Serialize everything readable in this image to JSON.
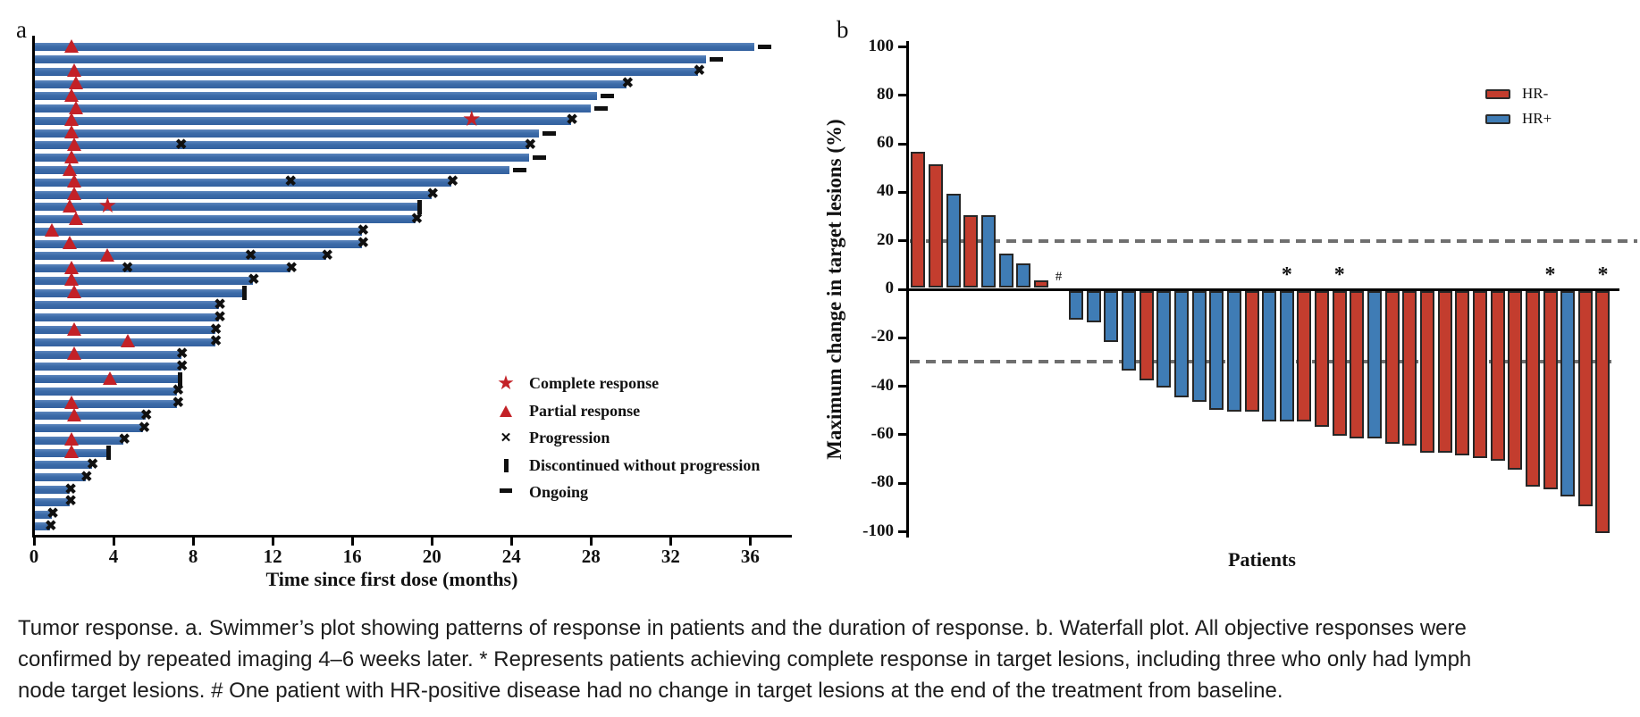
{
  "figure": {
    "panel_a_label": "a",
    "panel_b_label": "b"
  },
  "caption": {
    "lines": [
      "Tumor response. a. Swimmer’s plot showing patterns of response in patients and the duration of response. b. Waterfall plot. All objective responses were",
      "confirmed by repeated imaging 4–6 weeks later. * Represents patients achieving complete response in target lesions, including three who only had lymph",
      "node target lesions. # One patient with HR-positive disease had no change in target lesions at the end of the treatment from baseline."
    ]
  },
  "chart_data": [
    {
      "id": "swimmer",
      "type": "bar",
      "orientation": "horizontal",
      "xlabel": "Time since first dose (months)",
      "xticks": [
        0,
        4,
        8,
        12,
        16,
        20,
        24,
        28,
        32,
        36
      ],
      "xlim": [
        0,
        38
      ],
      "bar_color": "#3c6ba8",
      "marker_red": "#c32127",
      "marker_black": "#101010",
      "legend": [
        {
          "symbol": "star",
          "label": "Complete response"
        },
        {
          "symbol": "triangle",
          "label": "Partial response"
        },
        {
          "symbol": "x",
          "label": "Progression"
        },
        {
          "symbol": "vbar",
          "label": "Discontinued without progression"
        },
        {
          "symbol": "dash",
          "label": "Ongoing"
        }
      ],
      "patients": [
        {
          "months": 36.2,
          "end": "ongoing",
          "events": [
            {
              "type": "partial_response",
              "month": 1.9
            }
          ]
        },
        {
          "months": 33.8,
          "end": "ongoing",
          "events": []
        },
        {
          "months": 33.4,
          "end": "progression",
          "events": [
            {
              "type": "partial_response",
              "month": 2.0
            }
          ]
        },
        {
          "months": 29.8,
          "end": "progression",
          "events": [
            {
              "type": "partial_response",
              "month": 2.1
            }
          ]
        },
        {
          "months": 28.3,
          "end": "ongoing",
          "events": [
            {
              "type": "partial_response",
              "month": 1.9
            }
          ]
        },
        {
          "months": 28.0,
          "end": "ongoing",
          "events": [
            {
              "type": "partial_response",
              "month": 2.1
            }
          ]
        },
        {
          "months": 27.0,
          "end": "progression",
          "events": [
            {
              "type": "partial_response",
              "month": 1.9
            },
            {
              "type": "complete_response",
              "month": 22.0
            }
          ]
        },
        {
          "months": 25.4,
          "end": "ongoing",
          "events": [
            {
              "type": "partial_response",
              "month": 1.9
            }
          ]
        },
        {
          "months": 24.9,
          "end": "progression",
          "events": [
            {
              "type": "partial_response",
              "month": 2.0
            },
            {
              "type": "progression",
              "month": 7.4
            }
          ]
        },
        {
          "months": 24.9,
          "end": "ongoing",
          "events": [
            {
              "type": "partial_response",
              "month": 1.9
            }
          ]
        },
        {
          "months": 23.9,
          "end": "ongoing",
          "events": [
            {
              "type": "partial_response",
              "month": 1.8
            }
          ]
        },
        {
          "months": 21.0,
          "end": "progression",
          "events": [
            {
              "type": "partial_response",
              "month": 2.0
            },
            {
              "type": "progression",
              "month": 12.9
            }
          ]
        },
        {
          "months": 20.0,
          "end": "progression",
          "events": [
            {
              "type": "partial_response",
              "month": 2.0
            }
          ]
        },
        {
          "months": 19.3,
          "end": "discontinued",
          "events": [
            {
              "type": "partial_response",
              "month": 1.8
            },
            {
              "type": "complete_response",
              "month": 3.7
            }
          ]
        },
        {
          "months": 19.2,
          "end": "progression",
          "events": [
            {
              "type": "partial_response",
              "month": 2.1
            }
          ]
        },
        {
          "months": 16.5,
          "end": "progression",
          "events": [
            {
              "type": "partial_response",
              "month": 0.9
            }
          ]
        },
        {
          "months": 16.5,
          "end": "progression",
          "events": [
            {
              "type": "partial_response",
              "month": 1.8
            }
          ]
        },
        {
          "months": 14.7,
          "end": "progression",
          "events": [
            {
              "type": "partial_response",
              "month": 3.7
            },
            {
              "type": "progression",
              "month": 10.9
            }
          ]
        },
        {
          "months": 12.9,
          "end": "progression",
          "events": [
            {
              "type": "partial_response",
              "month": 1.9
            },
            {
              "type": "progression",
              "month": 4.7
            }
          ]
        },
        {
          "months": 11.0,
          "end": "progression",
          "events": [
            {
              "type": "partial_response",
              "month": 1.9
            }
          ]
        },
        {
          "months": 10.5,
          "end": "discontinued",
          "events": [
            {
              "type": "partial_response",
              "month": 2.0
            }
          ]
        },
        {
          "months": 9.3,
          "end": "progression",
          "events": []
        },
        {
          "months": 9.3,
          "end": "progression",
          "events": []
        },
        {
          "months": 9.1,
          "end": "progression",
          "events": [
            {
              "type": "partial_response",
              "month": 2.0
            }
          ]
        },
        {
          "months": 9.1,
          "end": "progression",
          "events": [
            {
              "type": "partial_response",
              "month": 4.7
            }
          ]
        },
        {
          "months": 7.4,
          "end": "progression",
          "events": [
            {
              "type": "partial_response",
              "month": 2.0
            }
          ]
        },
        {
          "months": 7.4,
          "end": "progression",
          "events": []
        },
        {
          "months": 7.3,
          "end": "discontinued",
          "events": [
            {
              "type": "partial_response",
              "month": 3.8
            }
          ]
        },
        {
          "months": 7.2,
          "end": "progression",
          "events": []
        },
        {
          "months": 7.2,
          "end": "progression",
          "events": [
            {
              "type": "partial_response",
              "month": 1.9
            }
          ]
        },
        {
          "months": 5.6,
          "end": "progression",
          "events": [
            {
              "type": "partial_response",
              "month": 2.0
            }
          ]
        },
        {
          "months": 5.5,
          "end": "progression",
          "events": []
        },
        {
          "months": 4.5,
          "end": "progression",
          "events": [
            {
              "type": "partial_response",
              "month": 1.9
            }
          ]
        },
        {
          "months": 3.7,
          "end": "discontinued",
          "events": [
            {
              "type": "partial_response",
              "month": 1.9
            }
          ]
        },
        {
          "months": 2.9,
          "end": "progression",
          "events": []
        },
        {
          "months": 2.6,
          "end": "progression",
          "events": []
        },
        {
          "months": 1.8,
          "end": "progression",
          "events": []
        },
        {
          "months": 1.8,
          "end": "progression",
          "events": []
        },
        {
          "months": 0.9,
          "end": "progression",
          "events": []
        },
        {
          "months": 0.8,
          "end": "progression",
          "events": []
        }
      ]
    },
    {
      "id": "waterfall",
      "type": "bar",
      "ylabel": "Maximum change in target lesions (%)",
      "xlabel": "Patients",
      "yticks": [
        100,
        80,
        60,
        40,
        20,
        0,
        -20,
        -40,
        -60,
        -80,
        -100
      ],
      "ylim": [
        -100,
        100
      ],
      "reference_lines": [
        20,
        -30
      ],
      "legend": [
        {
          "label": "HR-",
          "color": "#c33d2e"
        },
        {
          "label": "HR+",
          "color": "#3f7cb5"
        }
      ],
      "values": [
        {
          "value": 56,
          "group": "HR-"
        },
        {
          "value": 51,
          "group": "HR-"
        },
        {
          "value": 39,
          "group": "HR+"
        },
        {
          "value": 30,
          "group": "HR-"
        },
        {
          "value": 30,
          "group": "HR+"
        },
        {
          "value": 14,
          "group": "HR+"
        },
        {
          "value": 10,
          "group": "HR+"
        },
        {
          "value": 3,
          "group": "HR-"
        },
        {
          "value": 0,
          "group": "HR+",
          "annotation": "#"
        },
        {
          "value": -12,
          "group": "HR+"
        },
        {
          "value": -13,
          "group": "HR+"
        },
        {
          "value": -21,
          "group": "HR+"
        },
        {
          "value": -33,
          "group": "HR+"
        },
        {
          "value": -37,
          "group": "HR-"
        },
        {
          "value": -40,
          "group": "HR+"
        },
        {
          "value": -44,
          "group": "HR+"
        },
        {
          "value": -46,
          "group": "HR+"
        },
        {
          "value": -49,
          "group": "HR+"
        },
        {
          "value": -50,
          "group": "HR+"
        },
        {
          "value": -50,
          "group": "HR-"
        },
        {
          "value": -54,
          "group": "HR+"
        },
        {
          "value": -54,
          "group": "HR+",
          "annotation": "*"
        },
        {
          "value": -54,
          "group": "HR-"
        },
        {
          "value": -56,
          "group": "HR-"
        },
        {
          "value": -60,
          "group": "HR-",
          "annotation": "*"
        },
        {
          "value": -61,
          "group": "HR-"
        },
        {
          "value": -61,
          "group": "HR+"
        },
        {
          "value": -63,
          "group": "HR-"
        },
        {
          "value": -64,
          "group": "HR-"
        },
        {
          "value": -67,
          "group": "HR-"
        },
        {
          "value": -67,
          "group": "HR-"
        },
        {
          "value": -68,
          "group": "HR-"
        },
        {
          "value": -69,
          "group": "HR-"
        },
        {
          "value": -70,
          "group": "HR-"
        },
        {
          "value": -74,
          "group": "HR-"
        },
        {
          "value": -81,
          "group": "HR-"
        },
        {
          "value": -82,
          "group": "HR-",
          "annotation": "*"
        },
        {
          "value": -85,
          "group": "HR+"
        },
        {
          "value": -89,
          "group": "HR-"
        },
        {
          "value": -100,
          "group": "HR-",
          "annotation": "*"
        }
      ]
    }
  ]
}
